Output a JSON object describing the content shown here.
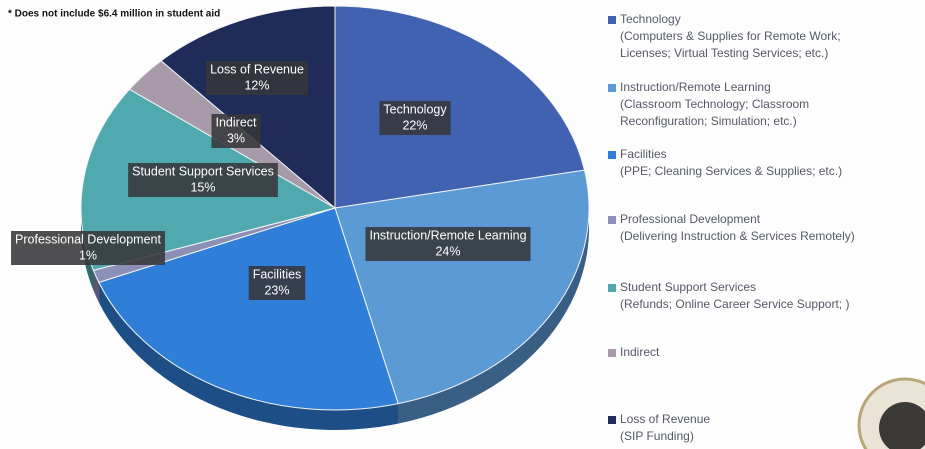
{
  "chart_data": {
    "type": "pie",
    "note": "* Does not include $6.4 million in student aid",
    "categories": [
      "Technology",
      "Instruction/Remote Learning",
      "Facilities",
      "Professional Development",
      "Student Support Services",
      "Indirect",
      "Loss of Revenue"
    ],
    "values": [
      22,
      24,
      23,
      1,
      15,
      3,
      12
    ],
    "value_labels": [
      "22%",
      "24%",
      "23%",
      "1%",
      "15%",
      "3%",
      "12%"
    ],
    "colors": [
      "#4062b0",
      "#5c9ad6",
      "#2f7fd8",
      "#8c90b8",
      "#4fa9ae",
      "#a79ba9",
      "#1f2b58"
    ],
    "descriptions": [
      [
        "(Computers & Supplies for Remote Work;",
        "Licenses; Virtual Testing Services; etc.)"
      ],
      [
        "(Classroom Technology; Classroom",
        "Reconfiguration; Simulation; etc.)"
      ],
      [
        "(PPE; Cleaning Services & Supplies; etc.)"
      ],
      [
        "(Delivering Instruction & Services Remotely)"
      ],
      [
        "(Refunds; Online Career Service Support; )"
      ],
      null,
      [
        "(SIP Funding)"
      ]
    ],
    "legend": "right"
  }
}
